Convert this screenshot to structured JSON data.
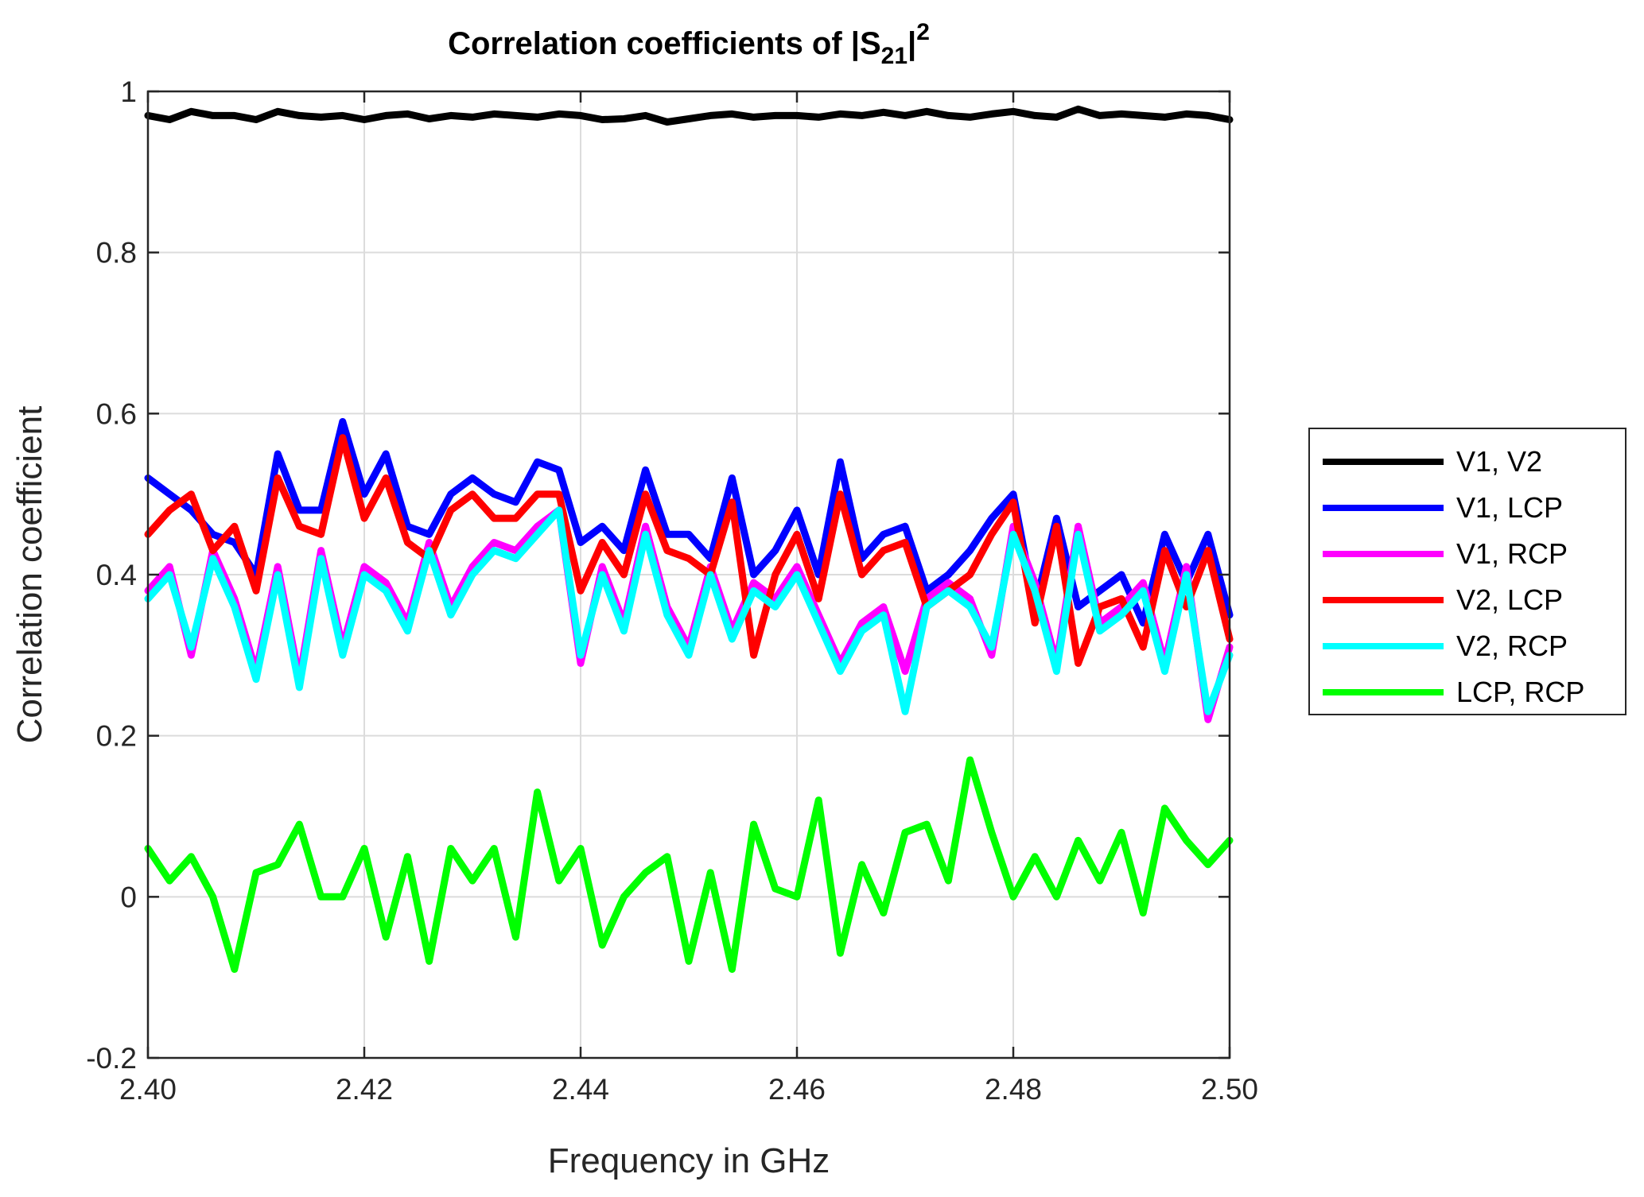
{
  "chart_data": {
    "type": "line",
    "title": "Correlation coefficients of |S21|2",
    "title_parts": {
      "main": "Correlation coefficients of |S",
      "sub": "21",
      "close": "|",
      "sup": "2"
    },
    "xlabel": "Frequency in GHz",
    "ylabel": "Correlation coefficient",
    "xlim": [
      2.4,
      2.5
    ],
    "ylim": [
      -0.2,
      1.0
    ],
    "xticks": [
      "2.40",
      "2.42",
      "2.44",
      "2.46",
      "2.48",
      "2.50"
    ],
    "xtick_values": [
      2.4,
      2.42,
      2.44,
      2.46,
      2.48,
      2.5
    ],
    "yticks": [
      "-0.2",
      "0",
      "0.2",
      "0.4",
      "0.6",
      "0.8",
      "1"
    ],
    "ytick_values": [
      -0.2,
      0,
      0.2,
      0.4,
      0.6,
      0.8,
      1.0
    ],
    "grid": true,
    "legend_placement": "outside-right",
    "x_start": 2.4,
    "x_step": 0.002,
    "series": [
      {
        "name": "V1, V2",
        "color": "#000000",
        "values": [
          0.97,
          0.965,
          0.975,
          0.97,
          0.97,
          0.965,
          0.975,
          0.97,
          0.968,
          0.97,
          0.965,
          0.97,
          0.972,
          0.966,
          0.97,
          0.968,
          0.972,
          0.97,
          0.968,
          0.972,
          0.97,
          0.965,
          0.966,
          0.97,
          0.962,
          0.966,
          0.97,
          0.972,
          0.968,
          0.97,
          0.97,
          0.968,
          0.972,
          0.97,
          0.974,
          0.97,
          0.975,
          0.97,
          0.968,
          0.972,
          0.975,
          0.97,
          0.968,
          0.978,
          0.97,
          0.972,
          0.97,
          0.968,
          0.972,
          0.97,
          0.965
        ]
      },
      {
        "name": "V1, LCP",
        "color": "#0000ff",
        "values": [
          0.52,
          0.5,
          0.48,
          0.45,
          0.44,
          0.4,
          0.55,
          0.48,
          0.48,
          0.59,
          0.5,
          0.55,
          0.46,
          0.45,
          0.5,
          0.52,
          0.5,
          0.49,
          0.54,
          0.53,
          0.44,
          0.46,
          0.43,
          0.53,
          0.45,
          0.45,
          0.42,
          0.52,
          0.4,
          0.43,
          0.48,
          0.4,
          0.54,
          0.42,
          0.45,
          0.46,
          0.38,
          0.4,
          0.43,
          0.47,
          0.5,
          0.36,
          0.47,
          0.36,
          0.38,
          0.4,
          0.34,
          0.45,
          0.39,
          0.45,
          0.35
        ]
      },
      {
        "name": "V1, RCP",
        "color": "#ff00ff",
        "values": [
          0.38,
          0.41,
          0.3,
          0.43,
          0.37,
          0.28,
          0.41,
          0.27,
          0.43,
          0.31,
          0.41,
          0.39,
          0.34,
          0.44,
          0.36,
          0.41,
          0.44,
          0.43,
          0.46,
          0.48,
          0.29,
          0.41,
          0.34,
          0.46,
          0.36,
          0.31,
          0.41,
          0.33,
          0.39,
          0.37,
          0.41,
          0.35,
          0.29,
          0.34,
          0.36,
          0.28,
          0.37,
          0.39,
          0.37,
          0.3,
          0.46,
          0.39,
          0.29,
          0.46,
          0.34,
          0.36,
          0.39,
          0.29,
          0.41,
          0.22,
          0.31
        ]
      },
      {
        "name": "V2, LCP",
        "color": "#ff0000",
        "values": [
          0.45,
          0.48,
          0.5,
          0.43,
          0.46,
          0.38,
          0.52,
          0.46,
          0.45,
          0.57,
          0.47,
          0.52,
          0.44,
          0.42,
          0.48,
          0.5,
          0.47,
          0.47,
          0.5,
          0.5,
          0.38,
          0.44,
          0.4,
          0.5,
          0.43,
          0.42,
          0.4,
          0.49,
          0.3,
          0.4,
          0.45,
          0.37,
          0.5,
          0.4,
          0.43,
          0.44,
          0.36,
          0.38,
          0.4,
          0.45,
          0.49,
          0.34,
          0.46,
          0.29,
          0.36,
          0.37,
          0.31,
          0.43,
          0.36,
          0.43,
          0.32
        ]
      },
      {
        "name": "V2, RCP",
        "color": "#00ffff",
        "values": [
          0.37,
          0.4,
          0.31,
          0.42,
          0.36,
          0.27,
          0.4,
          0.26,
          0.42,
          0.3,
          0.4,
          0.38,
          0.33,
          0.43,
          0.35,
          0.4,
          0.43,
          0.42,
          0.45,
          0.48,
          0.3,
          0.4,
          0.33,
          0.45,
          0.35,
          0.3,
          0.4,
          0.32,
          0.38,
          0.36,
          0.4,
          0.34,
          0.28,
          0.33,
          0.35,
          0.23,
          0.36,
          0.38,
          0.36,
          0.31,
          0.45,
          0.38,
          0.28,
          0.45,
          0.33,
          0.35,
          0.38,
          0.28,
          0.4,
          0.23,
          0.3
        ]
      },
      {
        "name": "LCP, RCP",
        "color": "#00ff00",
        "values": [
          0.06,
          0.02,
          0.05,
          0.0,
          -0.09,
          0.03,
          0.04,
          0.09,
          0.0,
          0.0,
          0.06,
          -0.05,
          0.05,
          -0.08,
          0.06,
          0.02,
          0.06,
          -0.05,
          0.13,
          0.02,
          0.06,
          -0.06,
          0.0,
          0.03,
          0.05,
          -0.08,
          0.03,
          -0.09,
          0.09,
          0.01,
          0.0,
          0.12,
          -0.07,
          0.04,
          -0.02,
          0.08,
          0.09,
          0.02,
          0.17,
          0.08,
          0.0,
          0.05,
          0.0,
          0.07,
          0.02,
          0.08,
          -0.02,
          0.11,
          0.07,
          0.04,
          0.07
        ]
      }
    ]
  }
}
